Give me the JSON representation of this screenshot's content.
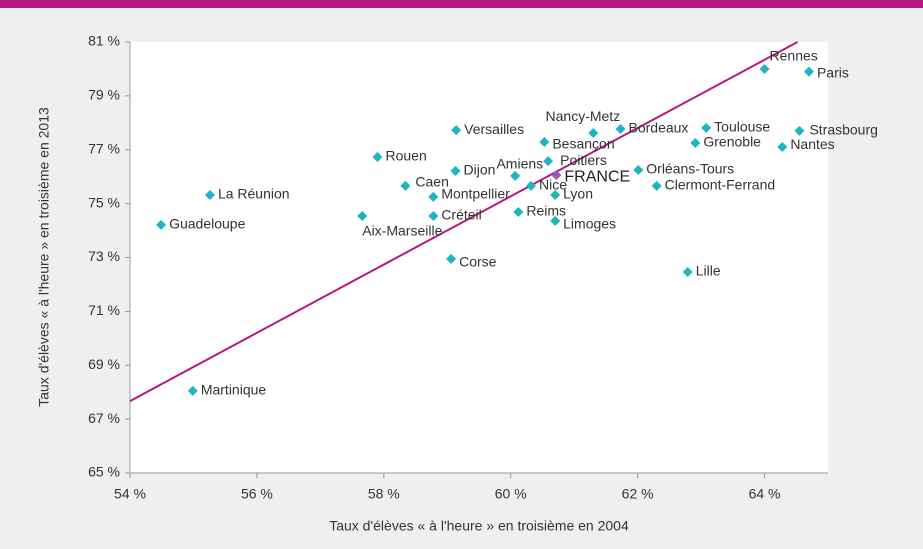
{
  "chart_data": {
    "type": "scatter",
    "xlabel": "Taux d'élèves « à l'heure » en troisième en 2004",
    "ylabel": "Taux d'élèves « à l'heure » en troisième en 2013",
    "labels": [
      "Rennes",
      "Paris",
      "Strasbourg",
      "Nantes",
      "Toulouse",
      "Grenoble",
      "Bordeaux",
      "Nancy-Metz",
      "Besançon",
      "Versailles",
      "Poitiers",
      "Amiens",
      "Orléans-Tours",
      "FRANCE",
      "Nice",
      "Clermont-Ferrand",
      "Lyon",
      "Rouen",
      "Dijon",
      "Caen",
      "Montpellier",
      "La Réunion",
      "Guadeloupe",
      "Aix-Marseille",
      "Créteil",
      "Reims",
      "Limoges",
      "Corse",
      "Lille",
      "Martinique"
    ],
    "x": [
      64.0,
      64.7,
      64.55,
      64.28,
      63.08,
      62.91,
      61.73,
      61.3,
      60.53,
      59.14,
      60.59,
      60.07,
      62.01,
      60.72,
      60.32,
      62.3,
      60.7,
      57.9,
      59.13,
      58.34,
      58.78,
      55.26,
      54.49,
      57.66,
      58.78,
      60.12,
      60.7,
      59.06,
      62.79,
      54.99
    ],
    "y": [
      80.0,
      79.9,
      77.7,
      77.1,
      77.81,
      77.25,
      77.77,
      77.62,
      77.29,
      77.73,
      76.58,
      76.03,
      76.25,
      76.06,
      75.66,
      75.66,
      75.32,
      76.73,
      76.21,
      75.66,
      75.25,
      75.32,
      74.21,
      74.54,
      74.54,
      74.69,
      74.36,
      72.95,
      72.46,
      68.05
    ],
    "colors": [
      "#1fb5c0",
      "#1fb5c0",
      "#1fb5c0",
      "#1fb5c0",
      "#1fb5c0",
      "#1fb5c0",
      "#1fb5c0",
      "#1fb5c0",
      "#1fb5c0",
      "#1fb5c0",
      "#1fb5c0",
      "#1fb5c0",
      "#1fb5c0",
      "#9b59b6",
      "#1fb5c0",
      "#1fb5c0",
      "#1fb5c0",
      "#1fb5c0",
      "#1fb5c0",
      "#1fb5c0",
      "#1fb5c0",
      "#1fb5c0",
      "#1fb5c0",
      "#1fb5c0",
      "#1fb5c0",
      "#1fb5c0",
      "#1fb5c0",
      "#1fb5c0",
      "#1fb5c0",
      "#1fb5c0"
    ],
    "trend_line": {
      "x": [
        54,
        64.52
      ],
      "y": [
        67.67,
        81
      ],
      "color": "#b5197f"
    },
    "xlim": [
      54,
      65
    ],
    "xticks": [
      {
        "value": 54,
        "label": "54 %"
      },
      {
        "value": 56,
        "label": "56 %"
      },
      {
        "value": 58,
        "label": "58 %"
      },
      {
        "value": 60,
        "label": "60 %"
      },
      {
        "value": 62,
        "label": "62 %"
      },
      {
        "value": 64,
        "label": "64 %"
      }
    ],
    "ylim": [
      65,
      81
    ],
    "yticks": [
      {
        "value": 65,
        "label": "65 %"
      },
      {
        "value": 67,
        "label": "67 %"
      },
      {
        "value": 69,
        "label": "69 %"
      },
      {
        "value": 71,
        "label": "71 %"
      },
      {
        "value": 73,
        "label": "73 %"
      },
      {
        "value": 75,
        "label": "75 %"
      },
      {
        "value": 77,
        "label": "77 %"
      },
      {
        "value": 79,
        "label": "79 %"
      },
      {
        "value": 81,
        "label": "81 %"
      }
    ],
    "grid": false
  }
}
